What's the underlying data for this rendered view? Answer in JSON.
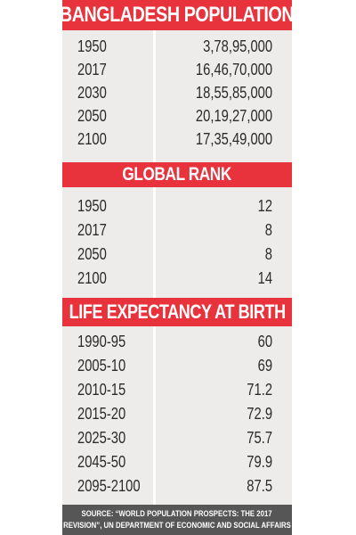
{
  "chart_data": {
    "type": "table",
    "sections": [
      {
        "title": "BANGLADESH POPULATION",
        "rows": [
          {
            "label": "1950",
            "value": "3,78,95,000"
          },
          {
            "label": "2017",
            "value": "16,46,70,000"
          },
          {
            "label": "2030",
            "value": "18,55,85,000"
          },
          {
            "label": "2050",
            "value": "20,19,27,000"
          },
          {
            "label": "2100",
            "value": "17,35,49,000"
          }
        ]
      },
      {
        "title": "GLOBAL RANK",
        "rows": [
          {
            "label": "1950",
            "value": "12"
          },
          {
            "label": "2017",
            "value": "8"
          },
          {
            "label": "2050",
            "value": "8"
          },
          {
            "label": "2100",
            "value": "14"
          }
        ]
      },
      {
        "title": "LIFE EXPECTANCY AT BIRTH",
        "rows": [
          {
            "label": "1990-95",
            "value": "60"
          },
          {
            "label": "2005-10",
            "value": "69"
          },
          {
            "label": "2010-15",
            "value": "71.2"
          },
          {
            "label": "2015-20",
            "value": "72.9"
          },
          {
            "label": "2025-30",
            "value": "75.7"
          },
          {
            "label": "2045-50",
            "value": "79.9"
          },
          {
            "label": "2095-2100",
            "value": "87.5"
          }
        ]
      }
    ],
    "source_line1": "SOURCE: “WORLD POPULATION PROSPECTS: THE 2017",
    "source_line2": "REVISION”, UN DEPARTMENT OF ECONOMIC AND SOCIAL AFFAIRS",
    "colors": {
      "header": "#e8323c",
      "table": "#edecea",
      "source": "#565656"
    }
  }
}
